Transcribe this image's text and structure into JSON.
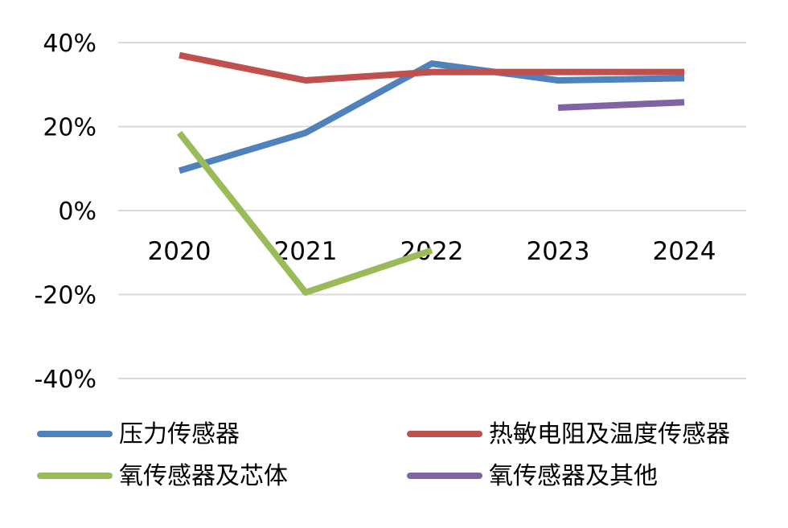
{
  "chart_data": {
    "type": "line",
    "categories": [
      "2020",
      "2021",
      "2022",
      "2023",
      "2024"
    ],
    "ylim": [
      -40,
      40
    ],
    "yticks": [
      40,
      20,
      0,
      -20,
      -40
    ],
    "ytick_labels": [
      "40%",
      "20%",
      "0%",
      "-20%",
      "-40%"
    ],
    "grid": true,
    "legend_position": "bottom",
    "series": [
      {
        "name": "压力传感器",
        "color": "#4f81bd",
        "values": [
          9.5,
          18.5,
          35,
          31,
          31.5
        ]
      },
      {
        "name": "热敏电阻及温度传感器",
        "color": "#c0504d",
        "values": [
          37,
          31,
          33,
          33,
          33
        ]
      },
      {
        "name": "氧传感器及芯体",
        "color": "#9bbb59",
        "values": [
          18.5,
          -19.5,
          -9.5,
          null,
          null
        ]
      },
      {
        "name": "氧传感器及其他",
        "color": "#8064a2",
        "values": [
          null,
          null,
          null,
          24.5,
          25.8
        ]
      }
    ]
  }
}
